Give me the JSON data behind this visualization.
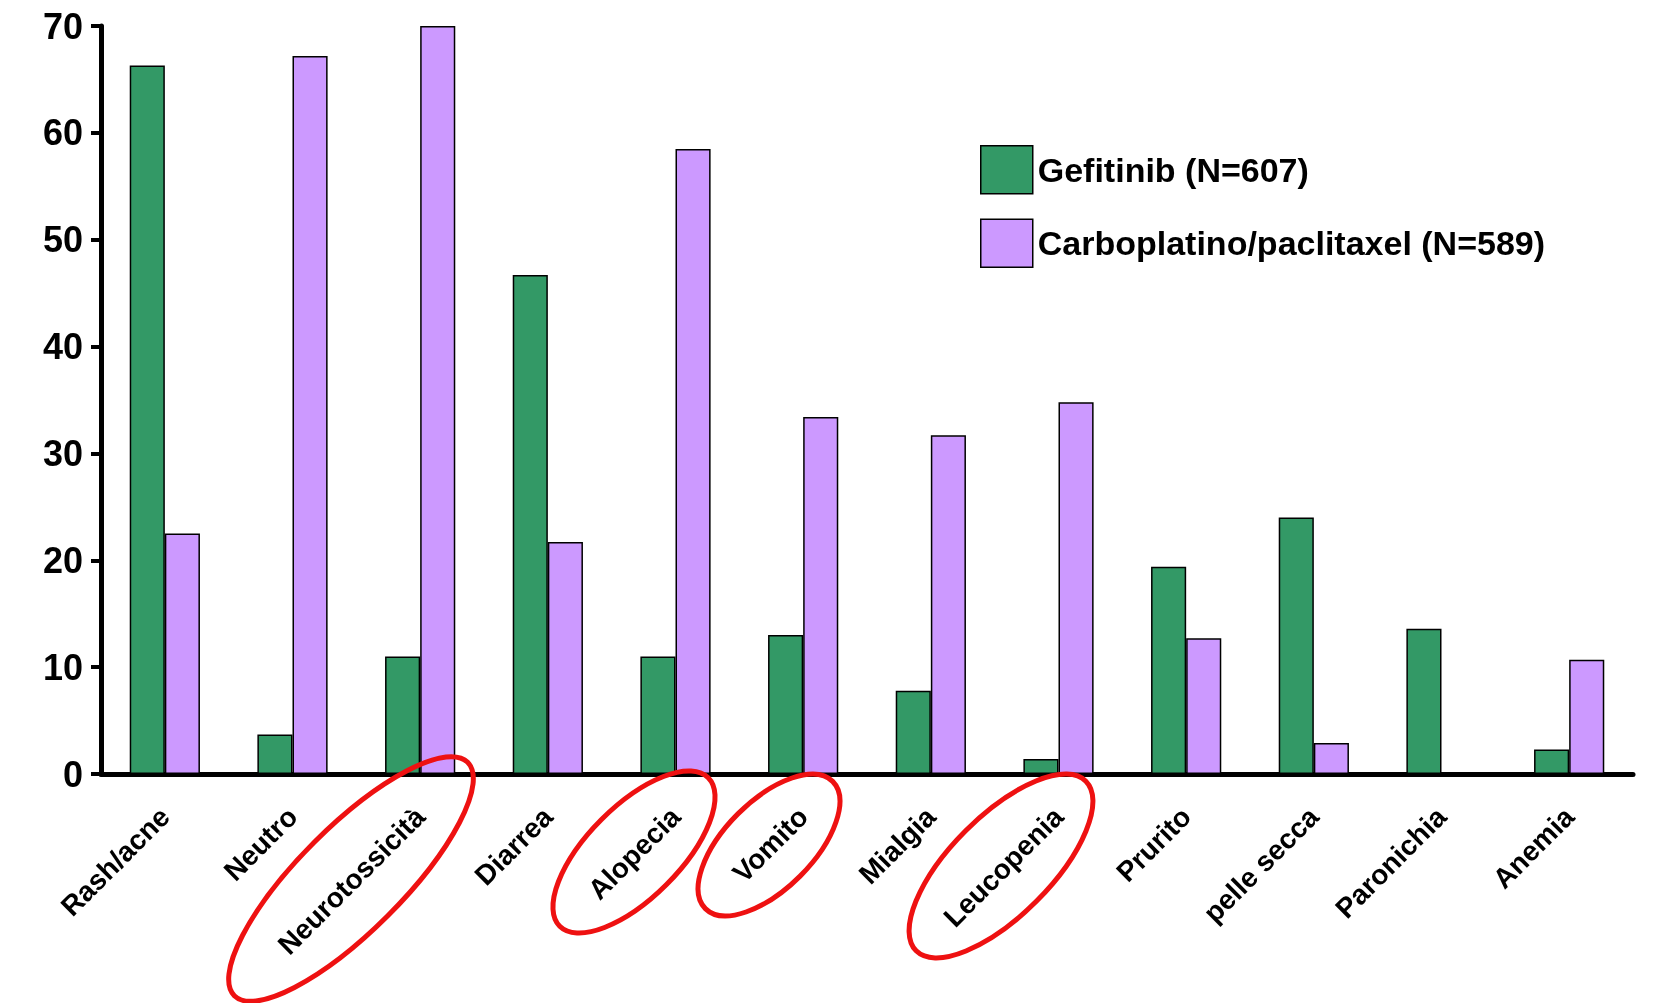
{
  "chart_data": {
    "type": "bar",
    "categories": [
      "Rash/acne",
      "Neutro",
      "Neurotossicità",
      "Diarrea",
      "Alopecia",
      "Vomito",
      "Mialgia",
      "Leucopenia",
      "Prurito",
      "pelle secca",
      "Paronichia",
      "Anemia"
    ],
    "series": [
      {
        "name": "Gefitinib (N=607)",
        "color": "#339966",
        "values": [
          66.3,
          3.7,
          11,
          46.7,
          11,
          13,
          7.8,
          1.4,
          19.4,
          24,
          13.6,
          2.3
        ]
      },
      {
        "name": "Carboplatino/paclitaxel (N=589)",
        "color": "#cc99ff",
        "values": [
          22.5,
          67.2,
          70,
          21.7,
          58.5,
          33.4,
          31.7,
          34.8,
          12.7,
          2.9,
          null,
          10.7
        ]
      }
    ],
    "ylim": [
      0,
      70
    ],
    "yticks": [
      0,
      10,
      20,
      30,
      40,
      50,
      60,
      70
    ],
    "legend": "top right"
  }
}
